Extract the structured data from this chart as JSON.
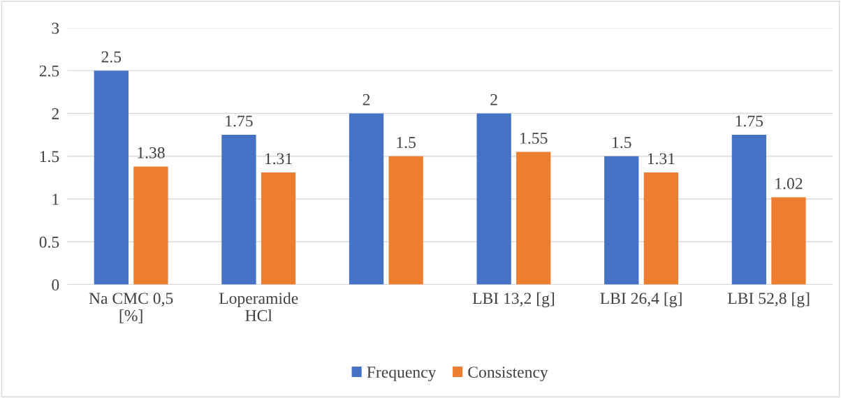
{
  "chart_data": {
    "type": "bar",
    "categories": [
      "Na CMC 0,5 [%]",
      "Loperamide HCl",
      null,
      "LBI 13,2 [g]",
      "LBI 26,4 [g]",
      "LBI 52,8 [g]"
    ],
    "series": [
      {
        "name": "Frequency",
        "color": "#4472c4",
        "values": [
          2.5,
          1.75,
          2,
          2,
          1.5,
          1.75
        ]
      },
      {
        "name": "Consistency",
        "color": "#ed7d31",
        "values": [
          1.38,
          1.31,
          1.5,
          1.55,
          1.31,
          1.02
        ]
      }
    ],
    "ylim": [
      0,
      3
    ],
    "yticks": [
      0,
      0.5,
      1,
      1.5,
      2,
      2.5,
      3
    ],
    "grid": "y",
    "legend": "bottom",
    "data_labels": true
  }
}
